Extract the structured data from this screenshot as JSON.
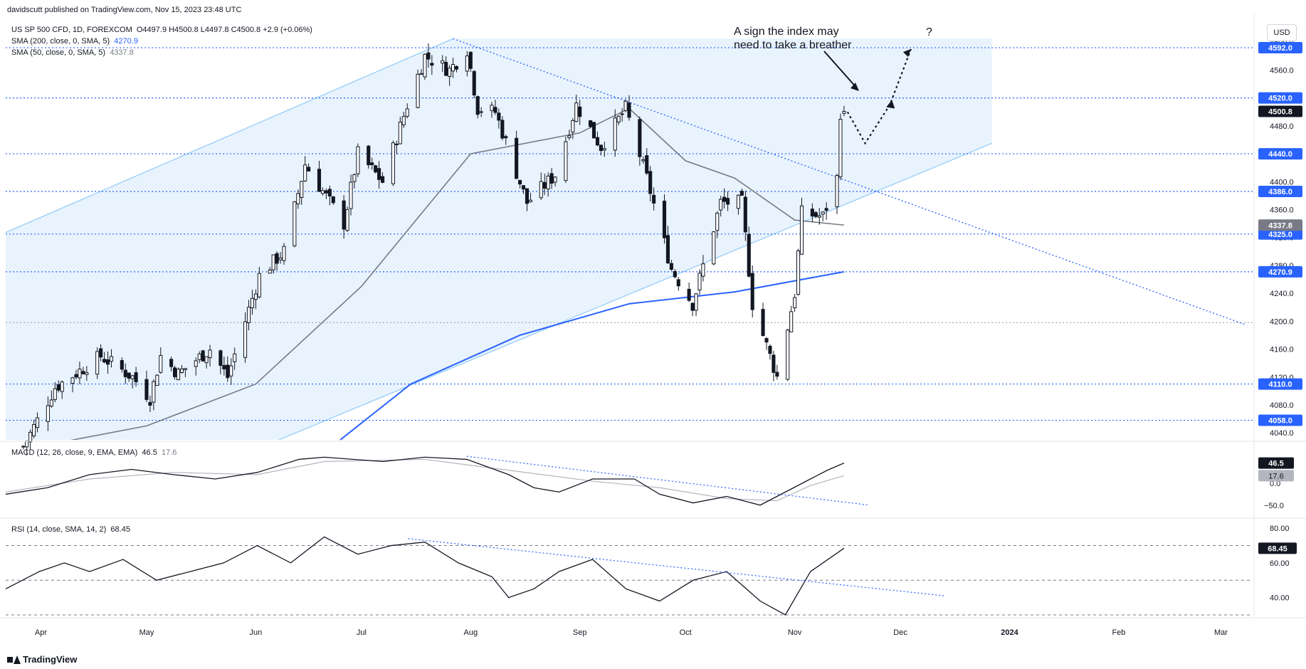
{
  "header": {
    "publisher": "davidscutt published on TradingView.com, Nov 15, 2023 23:48 UTC",
    "symbol_line": "US SP 500 CFD, 1D, FOREXCOM",
    "ohlc": "O4497.9  H4500.8  L4497.8  C4500.8  +2.9 (+0.06%)",
    "sma200_label": "SMA (200, close, 0, SMA, 5)",
    "sma200_value": "4270.9",
    "sma50_label": "SMA (50, close, 0, SMA, 5)",
    "sma50_value": "4337.8",
    "currency_button": "USD"
  },
  "annotations": {
    "note_line1": "A sign the index may",
    "note_line2": "need to take a breather",
    "question": "?"
  },
  "macd_legend": {
    "label": "MACD (12, 26, close, 9, EMA, EMA)",
    "value1": "46.5",
    "value2": "17.6"
  },
  "rsi_legend": {
    "label": "RSI (14, close, SMA, 14, 2)",
    "value": "68.45"
  },
  "brand": "TradingView",
  "colors": {
    "accent": "#2962ff",
    "channel_fill": "#e8f3fd",
    "channel_line": "#90caf9",
    "up": "#ffffff",
    "down": "#131722",
    "sma50": "#787b86"
  },
  "chart_data": {
    "type": "candlestick",
    "x_ticks": [
      "Apr",
      "May",
      "Jun",
      "Jul",
      "Aug",
      "Sep",
      "Oct",
      "Nov",
      "Dec",
      "2024",
      "Feb",
      "Mar"
    ],
    "y_ticks": [
      4040,
      4080,
      4120,
      4160,
      4200,
      4240,
      4280,
      4320,
      4360,
      4400,
      4440,
      4480,
      4520,
      4560,
      4600
    ],
    "ylim": [
      4030,
      4640
    ],
    "levels": [
      {
        "value": 4592.0,
        "label": "4592.0"
      },
      {
        "value": 4520.0,
        "label": "4520.0"
      },
      {
        "value": 4440.0,
        "label": "4440.0"
      },
      {
        "value": 4386.0,
        "label": "4386.0"
      },
      {
        "value": 4325.0,
        "label": "4325.0"
      },
      {
        "value": 4270.9,
        "label": "4270.9"
      },
      {
        "value": 4110.0,
        "label": "4110.0"
      },
      {
        "value": 4058.0,
        "label": "4058.0"
      }
    ],
    "gray_level": 4198,
    "last_price": {
      "value": 4500.8,
      "label": "4500.8"
    },
    "sma50_badge": {
      "value": 4337.8,
      "label": "4337.8"
    },
    "anchors": [
      {
        "date": "2023-03-27",
        "close": 4020
      },
      {
        "date": "2023-04-05",
        "close": 4105
      },
      {
        "date": "2023-04-18",
        "close": 4150
      },
      {
        "date": "2023-04-27",
        "close": 4120
      },
      {
        "date": "2023-05-02",
        "close": 4090
      },
      {
        "date": "2023-05-05",
        "close": 4150
      },
      {
        "date": "2023-05-10",
        "close": 4125
      },
      {
        "date": "2023-05-19",
        "close": 4160
      },
      {
        "date": "2023-05-24",
        "close": 4120
      },
      {
        "date": "2023-06-02",
        "close": 4265
      },
      {
        "date": "2023-06-09",
        "close": 4300
      },
      {
        "date": "2023-06-15",
        "close": 4425
      },
      {
        "date": "2023-06-26",
        "close": 4340
      },
      {
        "date": "2023-06-30",
        "close": 4440
      },
      {
        "date": "2023-07-07",
        "close": 4400
      },
      {
        "date": "2023-07-14",
        "close": 4510
      },
      {
        "date": "2023-07-19",
        "close": 4580
      },
      {
        "date": "2023-07-26",
        "close": 4560
      },
      {
        "date": "2023-07-31",
        "close": 4590
      },
      {
        "date": "2023-08-03",
        "close": 4505
      },
      {
        "date": "2023-08-08",
        "close": 4500
      },
      {
        "date": "2023-08-17",
        "close": 4370
      },
      {
        "date": "2023-08-25",
        "close": 4410
      },
      {
        "date": "2023-08-31",
        "close": 4510
      },
      {
        "date": "2023-09-07",
        "close": 4450
      },
      {
        "date": "2023-09-14",
        "close": 4505
      },
      {
        "date": "2023-09-20",
        "close": 4405
      },
      {
        "date": "2023-09-27",
        "close": 4275
      },
      {
        "date": "2023-10-03",
        "close": 4225
      },
      {
        "date": "2023-10-11",
        "close": 4370
      },
      {
        "date": "2023-10-17",
        "close": 4370
      },
      {
        "date": "2023-10-20",
        "close": 4225
      },
      {
        "date": "2023-10-27",
        "close": 4120
      },
      {
        "date": "2023-11-01",
        "close": 4240
      },
      {
        "date": "2023-11-03",
        "close": 4355
      },
      {
        "date": "2023-11-09",
        "close": 4350
      },
      {
        "date": "2023-11-13",
        "close": 4405
      },
      {
        "date": "2023-11-14",
        "close": 4500
      },
      {
        "date": "2023-11-15",
        "close": 4500.8
      }
    ],
    "sma200": {
      "start": [
        "2023-06-25",
        4030
      ],
      "points": [
        [
          "2023-07-15",
          4110
        ],
        [
          "2023-08-15",
          4180
        ],
        [
          "2023-09-15",
          4225
        ],
        [
          "2023-10-15",
          4242
        ],
        [
          "2023-11-15",
          4270.9
        ]
      ]
    },
    "sma50": {
      "points": [
        [
          "2023-04-05",
          4025
        ],
        [
          "2023-05-01",
          4050
        ],
        [
          "2023-06-01",
          4110
        ],
        [
          "2023-07-01",
          4250
        ],
        [
          "2023-08-01",
          4440
        ],
        [
          "2023-09-01",
          4470
        ],
        [
          "2023-09-15",
          4505
        ],
        [
          "2023-10-01",
          4430
        ],
        [
          "2023-10-15",
          4405
        ],
        [
          "2023-11-01",
          4345
        ],
        [
          "2023-11-15",
          4337.8
        ]
      ]
    },
    "channel": {
      "upper": [
        [
          "2023-03-21",
          4325
        ],
        [
          "2023-07-27",
          4605
        ]
      ],
      "lower": [
        [
          "2023-06-10",
          4035
        ],
        [
          "2023-12-27",
          4455
        ]
      ],
      "right_edge": "2023-12-27"
    },
    "downtrend": [
      [
        "2023-07-27",
        4605
      ],
      [
        "2024-03-08",
        4195
      ]
    ],
    "projection": [
      [
        "2023-11-16",
        4500
      ],
      [
        "2023-11-21",
        4455
      ],
      [
        "2023-11-28",
        4510
      ],
      [
        "2023-12-04",
        4590
      ]
    ],
    "macd": {
      "ylim": [
        -70,
        90
      ],
      "y_ticks": [
        -50,
        0,
        46.5
      ],
      "macd_points": [
        [
          0,
          -25
        ],
        [
          0.05,
          -10
        ],
        [
          0.1,
          20
        ],
        [
          0.15,
          32
        ],
        [
          0.2,
          20
        ],
        [
          0.25,
          10
        ],
        [
          0.3,
          25
        ],
        [
          0.35,
          55
        ],
        [
          0.38,
          60
        ],
        [
          0.45,
          50
        ],
        [
          0.5,
          60
        ],
        [
          0.55,
          55
        ],
        [
          0.6,
          20
        ],
        [
          0.63,
          -10
        ],
        [
          0.66,
          -20
        ],
        [
          0.7,
          10
        ],
        [
          0.75,
          10
        ],
        [
          0.78,
          -25
        ],
        [
          0.82,
          -45
        ],
        [
          0.86,
          -30
        ],
        [
          0.9,
          -50
        ],
        [
          0.94,
          -10
        ],
        [
          0.98,
          30
        ],
        [
          1,
          46.5
        ]
      ],
      "signal_points": [
        [
          0,
          -20
        ],
        [
          0.1,
          10
        ],
        [
          0.2,
          25
        ],
        [
          0.3,
          20
        ],
        [
          0.38,
          50
        ],
        [
          0.5,
          55
        ],
        [
          0.6,
          30
        ],
        [
          0.7,
          5
        ],
        [
          0.78,
          -10
        ],
        [
          0.86,
          -35
        ],
        [
          0.92,
          -40
        ],
        [
          0.96,
          -5
        ],
        [
          1,
          17.6
        ]
      ],
      "trend": [
        [
          0.55,
          62
        ],
        [
          1.03,
          -50
        ]
      ]
    },
    "rsi": {
      "ylim": [
        30,
        85
      ],
      "y_ticks": [
        40,
        60,
        80
      ],
      "bands": [
        30,
        50,
        70
      ],
      "points": [
        [
          0,
          45
        ],
        [
          0.04,
          55
        ],
        [
          0.07,
          60
        ],
        [
          0.1,
          55
        ],
        [
          0.14,
          62
        ],
        [
          0.18,
          50
        ],
        [
          0.22,
          55
        ],
        [
          0.26,
          60
        ],
        [
          0.3,
          70
        ],
        [
          0.34,
          60
        ],
        [
          0.38,
          75
        ],
        [
          0.42,
          65
        ],
        [
          0.46,
          70
        ],
        [
          0.5,
          72
        ],
        [
          0.54,
          60
        ],
        [
          0.58,
          52
        ],
        [
          0.6,
          40
        ],
        [
          0.63,
          45
        ],
        [
          0.66,
          55
        ],
        [
          0.7,
          62
        ],
        [
          0.74,
          45
        ],
        [
          0.78,
          38
        ],
        [
          0.82,
          50
        ],
        [
          0.86,
          55
        ],
        [
          0.9,
          38
        ],
        [
          0.93,
          30
        ],
        [
          0.96,
          55
        ],
        [
          1,
          68.45
        ]
      ],
      "trend": [
        [
          0.48,
          74
        ],
        [
          1.12,
          41
        ]
      ]
    }
  }
}
